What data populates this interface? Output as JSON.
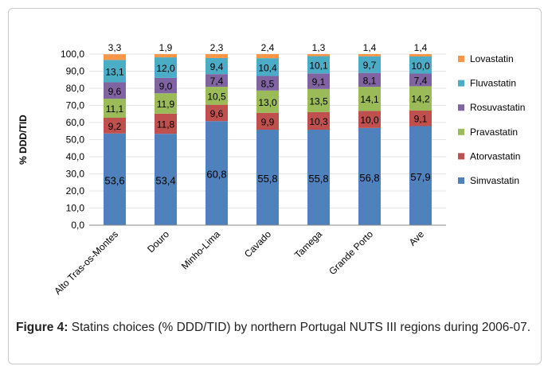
{
  "figure": {
    "caption_label": "Figure 4:",
    "caption_text": " Statins choices (% DDD/TID) by northern Portugal NUTS III regions during 2006-07."
  },
  "chart_data": {
    "type": "bar",
    "stacked": true,
    "ylabel": "% DDD/TID",
    "ylim": [
      0,
      100
    ],
    "yticks": [
      "0,0",
      "10,0",
      "20,0",
      "30,0",
      "40,0",
      "50,0",
      "60,0",
      "70,0",
      "80,0",
      "90,0",
      "100,0"
    ],
    "categories": [
      "Alto Tras-os-Montes",
      "Douro",
      "Minho-Lima",
      "Cavado",
      "Tamega",
      "Grande Porto",
      "Ave"
    ],
    "legend_position": "right",
    "series": [
      {
        "name": "Simvastatin",
        "color": "#4f81bd",
        "values": [
          53.6,
          53.4,
          60.8,
          55.8,
          55.8,
          56.8,
          57.9
        ],
        "labels": [
          "53,6",
          "53,4",
          "60,8",
          "55,8",
          "55,8",
          "56,8",
          "57,9"
        ]
      },
      {
        "name": "Atorvastatin",
        "color": "#c0504d",
        "values": [
          9.2,
          11.8,
          9.6,
          9.9,
          10.3,
          10.0,
          9.1
        ],
        "labels": [
          "9,2",
          "11,8",
          "9,6",
          "9,9",
          "10,3",
          "10,0",
          "9,1"
        ]
      },
      {
        "name": "Pravastatin",
        "color": "#9bbb59",
        "values": [
          11.1,
          11.9,
          10.5,
          13.0,
          13.5,
          14.1,
          14.2
        ],
        "labels": [
          "11,1",
          "11,9",
          "10,5",
          "13,0",
          "13,5",
          "14,1",
          "14,2"
        ]
      },
      {
        "name": "Rosuvastatin",
        "color": "#8064a2",
        "values": [
          9.6,
          9.0,
          7.4,
          8.5,
          9.1,
          8.1,
          7.4
        ],
        "labels": [
          "9,6",
          "9,0",
          "7,4",
          "8,5",
          "9,1",
          "8,1",
          "7,4"
        ]
      },
      {
        "name": "Fluvastatin",
        "color": "#4bacc6",
        "values": [
          13.1,
          12.0,
          9.4,
          10.4,
          10.1,
          9.7,
          10.0
        ],
        "labels": [
          "13,1",
          "12,0",
          "9,4",
          "10,4",
          "10,1",
          "9,7",
          "10,0"
        ]
      },
      {
        "name": "Lovastatin",
        "color": "#f79646",
        "values": [
          3.3,
          1.9,
          2.3,
          2.4,
          1.3,
          1.4,
          1.4
        ],
        "labels": [
          "3,3",
          "1,9",
          "2,3",
          "2,4",
          "1,3",
          "1,4",
          "1,4"
        ]
      }
    ]
  }
}
